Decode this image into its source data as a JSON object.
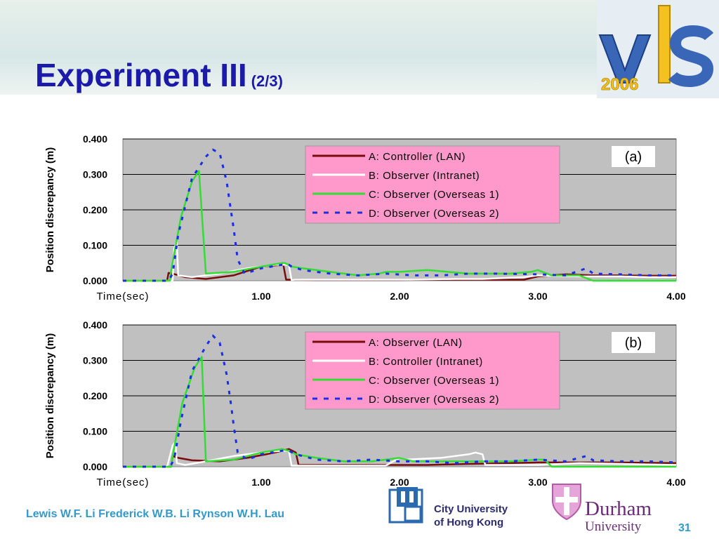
{
  "slide": {
    "title": "Experiment III",
    "title_suffix": "(2/3)",
    "authors": "Lewis W.F. Li  Frederick W.B. Li  Rynson W.H. Lau",
    "page_number": "31",
    "logo_year": "2006",
    "cityu_line1": "City University",
    "cityu_line2": "of Hong Kong",
    "durham_line1": "Durham",
    "durham_line2": "University"
  },
  "chart_data": [
    {
      "type": "line",
      "panel_label": "(a)",
      "xlabel": "Time(sec)",
      "ylabel": "Position discrepancy (m)",
      "xlim": [
        0,
        4.0
      ],
      "ylim": [
        0,
        0.4
      ],
      "xticks": [
        "1.00",
        "2.00",
        "3.00",
        "4.00"
      ],
      "yticks": [
        "0.000",
        "0.100",
        "0.200",
        "0.300",
        "0.400"
      ],
      "grid": true,
      "legend_position": "top-right",
      "series": [
        {
          "name": "A: Controller (LAN)",
          "color": "#7a0b0b",
          "dash": "solid",
          "x": [
            0,
            0.32,
            0.33,
            0.36,
            0.45,
            0.6,
            0.8,
            1.0,
            1.16,
            1.18,
            1.19,
            1.4,
            1.6,
            1.8,
            2.0,
            2.2,
            2.4,
            2.6,
            2.9,
            3.0,
            3.2,
            3.4,
            3.6,
            3.8,
            4.0
          ],
          "y": [
            0,
            0,
            0.022,
            0.02,
            0.01,
            0.005,
            0.015,
            0.04,
            0.045,
            0.003,
            0.003,
            0.002,
            0.002,
            0.002,
            0.002,
            0.003,
            0.003,
            0.003,
            0.003,
            0.012,
            0.018,
            0.015,
            0.015,
            0.014,
            0.014
          ]
        },
        {
          "name": "B: Observer (Intranet)",
          "color": "#ffffff",
          "dash": "solid",
          "x": [
            0,
            0.36,
            0.37,
            0.39,
            0.4,
            0.5,
            0.7,
            0.9,
            1.1,
            1.2,
            1.22,
            1.24,
            1.26,
            1.5,
            1.7,
            2.0,
            2.04,
            2.06,
            2.08,
            2.4,
            2.6,
            2.9,
            3.0,
            3.3,
            3.6,
            3.8,
            4.0
          ],
          "y": [
            0,
            0,
            0.09,
            0.11,
            0.015,
            0.01,
            0.02,
            0.035,
            0.045,
            0.045,
            0.002,
            0.003,
            0.003,
            0.003,
            0.003,
            0.003,
            0.003,
            0.003,
            0.003,
            0.005,
            0.005,
            0.01,
            0.015,
            0.012,
            0.012,
            0.01,
            0.01
          ]
        },
        {
          "name": "C: Observer (Overseas 1)",
          "color": "#33dd33",
          "dash": "solid",
          "x": [
            0,
            0.34,
            0.35,
            0.42,
            0.5,
            0.55,
            0.6,
            0.8,
            1.0,
            1.15,
            1.17,
            1.2,
            1.22,
            1.3,
            1.5,
            1.7,
            1.85,
            1.9,
            2.0,
            2.2,
            2.5,
            2.8,
            2.95,
            3.0,
            3.1,
            3.3,
            3.4,
            3.6,
            4.0
          ],
          "y": [
            0,
            0,
            0.03,
            0.18,
            0.28,
            0.31,
            0.02,
            0.025,
            0.04,
            0.05,
            0.05,
            0.045,
            0.04,
            0.035,
            0.025,
            0.015,
            0.02,
            0.025,
            0.025,
            0.03,
            0.02,
            0.02,
            0.025,
            0.03,
            0.015,
            0.015,
            0.0,
            0.0,
            0.0
          ]
        },
        {
          "name": "D: Observer (Overseas 2)",
          "color": "#1a2ee6",
          "dash": "dashed",
          "x": [
            0,
            0.33,
            0.36,
            0.4,
            0.5,
            0.6,
            0.65,
            0.7,
            0.75,
            0.78,
            0.8,
            0.83,
            0.88,
            1.0,
            1.15,
            1.2,
            1.22,
            1.3,
            1.5,
            1.7,
            1.9,
            2.1,
            2.3,
            2.5,
            2.7,
            3.0,
            3.2,
            3.35,
            3.4,
            3.6,
            3.8,
            4.0
          ],
          "y": [
            0,
            0,
            0.02,
            0.13,
            0.29,
            0.35,
            0.37,
            0.36,
            0.28,
            0.2,
            0.15,
            0.06,
            0.02,
            0.035,
            0.045,
            0.045,
            0.04,
            0.03,
            0.02,
            0.015,
            0.02,
            0.015,
            0.015,
            0.02,
            0.02,
            0.018,
            0.015,
            0.035,
            0.02,
            0.018,
            0.015,
            0.015
          ]
        }
      ]
    },
    {
      "type": "line",
      "panel_label": "(b)",
      "xlabel": "Time(sec)",
      "ylabel": "Position discrepancy (m)",
      "xlim": [
        0,
        4.0
      ],
      "ylim": [
        0,
        0.4
      ],
      "xticks": [
        "1.00",
        "2.00",
        "3.00",
        "4.00"
      ],
      "yticks": [
        "0.000",
        "0.100",
        "0.200",
        "0.300",
        "0.400"
      ],
      "grid": true,
      "legend_position": "top-right",
      "series": [
        {
          "name": "A: Observer (LAN)",
          "color": "#7a0b0b",
          "dash": "solid",
          "x": [
            0,
            0.35,
            0.36,
            0.4,
            0.5,
            0.7,
            0.9,
            1.1,
            1.2,
            1.25,
            1.27,
            1.3,
            1.5,
            1.7,
            2.0,
            2.2,
            2.5,
            2.8,
            3.0,
            3.3,
            3.6,
            4.0
          ],
          "y": [
            0,
            0,
            0.03,
            0.025,
            0.018,
            0.015,
            0.025,
            0.04,
            0.05,
            0.04,
            0.005,
            0.005,
            0.005,
            0.005,
            0.005,
            0.005,
            0.008,
            0.01,
            0.012,
            0.012,
            0.012,
            0.01
          ]
        },
        {
          "name": "B: Controller (Intranet)",
          "color": "#ffffff",
          "dash": "solid",
          "x": [
            0,
            0.32,
            0.36,
            0.38,
            0.39,
            0.45,
            0.6,
            0.8,
            1.0,
            1.15,
            1.2,
            1.22,
            1.24,
            1.4,
            1.6,
            1.9,
            2.0,
            2.05,
            2.3,
            2.5,
            2.55,
            2.6,
            2.62,
            2.65,
            3.0,
            3.3,
            3.6,
            4.0
          ],
          "y": [
            0,
            0,
            0.06,
            0.07,
            0.01,
            0.005,
            0.015,
            0.03,
            0.04,
            0.045,
            0.045,
            0.003,
            0.003,
            0.003,
            0.003,
            0.003,
            0.025,
            0.02,
            0.025,
            0.035,
            0.04,
            0.035,
            0.005,
            0.005,
            0.005,
            0.01,
            0.008,
            0.005
          ]
        },
        {
          "name": "C: Observer (Overseas 1)",
          "color": "#33dd33",
          "dash": "solid",
          "x": [
            0,
            0.35,
            0.36,
            0.43,
            0.52,
            0.57,
            0.6,
            0.8,
            1.0,
            1.15,
            1.2,
            1.25,
            1.4,
            1.6,
            1.8,
            2.0,
            2.1,
            2.3,
            2.5,
            2.8,
            3.0,
            3.05,
            3.1,
            3.3,
            3.6,
            4.0
          ],
          "y": [
            0,
            0,
            0.03,
            0.18,
            0.28,
            0.31,
            0.015,
            0.02,
            0.04,
            0.05,
            0.045,
            0.035,
            0.025,
            0.015,
            0.015,
            0.025,
            0.015,
            0.015,
            0.015,
            0.015,
            0.02,
            0.02,
            0.0,
            0.0,
            0.0,
            0.0
          ]
        },
        {
          "name": "D: Observer (Overseas 2)",
          "color": "#1a2ee6",
          "dash": "dashed",
          "x": [
            0,
            0.34,
            0.37,
            0.42,
            0.5,
            0.6,
            0.65,
            0.7,
            0.75,
            0.78,
            0.8,
            0.83,
            0.9,
            1.0,
            1.15,
            1.2,
            1.25,
            1.4,
            1.6,
            1.8,
            2.0,
            2.2,
            2.4,
            2.6,
            2.8,
            3.0,
            3.2,
            3.35,
            3.4,
            3.6,
            3.8,
            4.0
          ],
          "y": [
            0,
            0,
            0.02,
            0.13,
            0.27,
            0.34,
            0.37,
            0.35,
            0.26,
            0.18,
            0.12,
            0.04,
            0.02,
            0.035,
            0.045,
            0.045,
            0.035,
            0.02,
            0.015,
            0.02,
            0.015,
            0.015,
            0.01,
            0.015,
            0.015,
            0.02,
            0.015,
            0.03,
            0.018,
            0.015,
            0.015,
            0.012
          ]
        }
      ]
    }
  ]
}
